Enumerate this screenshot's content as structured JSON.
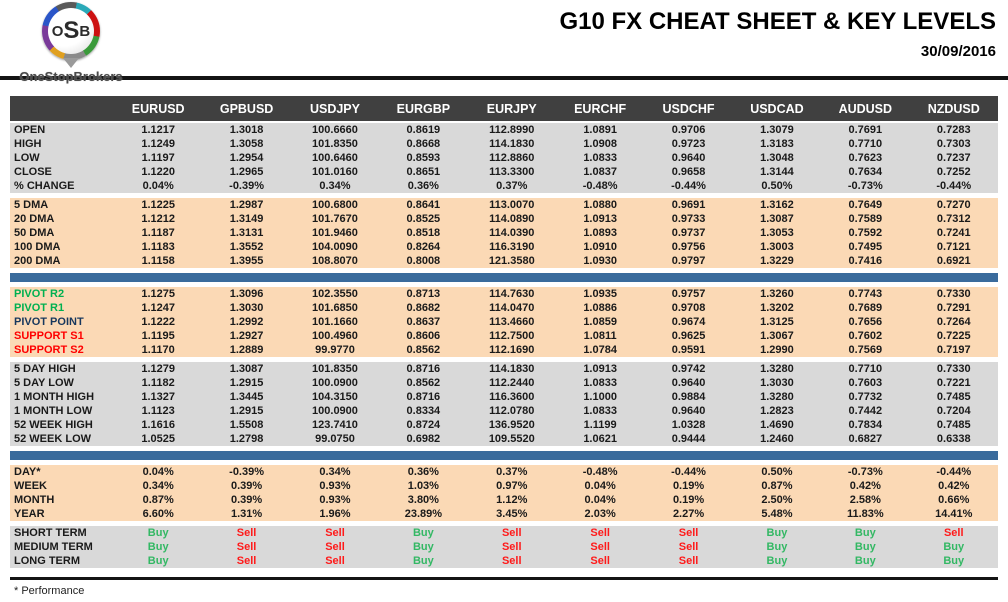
{
  "header": {
    "logo_text_o": "O",
    "logo_text_s": "S",
    "logo_text_b": "B",
    "logo_name": "OneStopBrokers",
    "title": "G10 FX CHEAT SHEET & KEY LEVELS",
    "date": "30/09/2016"
  },
  "colors": {
    "header_bar": "#404040",
    "row_gray": "#D9D9D9",
    "row_peach": "#FBD9B5",
    "divider_blue": "#3A6B9C",
    "pivot_resistance_green": "#00B050",
    "support_red": "#FF0000",
    "pivot_point_navy": "#17375D",
    "buy_green": "#33B864",
    "sell_red": "#FF1A1A"
  },
  "table": {
    "columns": [
      "EURUSD",
      "GPBUSD",
      "USDJPY",
      "EURGBP",
      "EURJPY",
      "EURCHF",
      "USDCHF",
      "USDCAD",
      "AUDUSD",
      "NZDUSD"
    ],
    "sections": [
      {
        "id": "ohlc",
        "bg": "gray",
        "divider_before": false,
        "rows": [
          {
            "label": "OPEN",
            "values": [
              "1.1217",
              "1.3018",
              "100.6660",
              "0.8619",
              "112.8990",
              "1.0891",
              "0.9706",
              "1.3079",
              "0.7691",
              "0.7283"
            ]
          },
          {
            "label": "HIGH",
            "values": [
              "1.1249",
              "1.3058",
              "101.8350",
              "0.8668",
              "114.1830",
              "1.0908",
              "0.9723",
              "1.3183",
              "0.7710",
              "0.7303"
            ]
          },
          {
            "label": "LOW",
            "values": [
              "1.1197",
              "1.2954",
              "100.6460",
              "0.8593",
              "112.8860",
              "1.0833",
              "0.9640",
              "1.3048",
              "0.7623",
              "0.7237"
            ]
          },
          {
            "label": "CLOSE",
            "values": [
              "1.1220",
              "1.2965",
              "101.0160",
              "0.8651",
              "113.3300",
              "1.0837",
              "0.9658",
              "1.3144",
              "0.7634",
              "0.7252"
            ]
          },
          {
            "label": "% CHANGE",
            "values": [
              "0.04%",
              "-0.39%",
              "0.34%",
              "0.36%",
              "0.37%",
              "-0.48%",
              "-0.44%",
              "0.50%",
              "-0.73%",
              "-0.44%"
            ]
          }
        ]
      },
      {
        "id": "dma",
        "bg": "peach",
        "divider_before": false,
        "rows": [
          {
            "label": "5 DMA",
            "values": [
              "1.1225",
              "1.2987",
              "100.6800",
              "0.8641",
              "113.0070",
              "1.0880",
              "0.9691",
              "1.3162",
              "0.7649",
              "0.7270"
            ]
          },
          {
            "label": "20 DMA",
            "values": [
              "1.1212",
              "1.3149",
              "101.7670",
              "0.8525",
              "114.0890",
              "1.0913",
              "0.9733",
              "1.3087",
              "0.7589",
              "0.7312"
            ]
          },
          {
            "label": "50 DMA",
            "values": [
              "1.1187",
              "1.3131",
              "101.9460",
              "0.8518",
              "114.0390",
              "1.0893",
              "0.9737",
              "1.3053",
              "0.7592",
              "0.7241"
            ]
          },
          {
            "label": "100 DMA",
            "values": [
              "1.1183",
              "1.3552",
              "104.0090",
              "0.8264",
              "116.3190",
              "1.0910",
              "0.9756",
              "1.3003",
              "0.7495",
              "0.7121"
            ]
          },
          {
            "label": "200 DMA",
            "values": [
              "1.1158",
              "1.3955",
              "108.8070",
              "0.8008",
              "121.3580",
              "1.0930",
              "0.9797",
              "1.3229",
              "0.7416",
              "0.6921"
            ]
          }
        ]
      },
      {
        "id": "pivots",
        "bg": "peach",
        "divider_before": true,
        "rows": [
          {
            "label": "PIVOT R2",
            "label_class": "lbl-green",
            "values": [
              "1.1275",
              "1.3096",
              "102.3550",
              "0.8713",
              "114.7630",
              "1.0935",
              "0.9757",
              "1.3260",
              "0.7743",
              "0.7330"
            ]
          },
          {
            "label": "PIVOT R1",
            "label_class": "lbl-green",
            "values": [
              "1.1247",
              "1.3030",
              "101.6850",
              "0.8682",
              "114.0470",
              "1.0886",
              "0.9708",
              "1.3202",
              "0.7689",
              "0.7291"
            ]
          },
          {
            "label": "PIVOT POINT",
            "label_class": "lbl-navy",
            "values": [
              "1.1222",
              "1.2992",
              "101.1660",
              "0.8637",
              "113.4660",
              "1.0859",
              "0.9674",
              "1.3125",
              "0.7656",
              "0.7264"
            ]
          },
          {
            "label": "SUPPORT S1",
            "label_class": "lbl-red",
            "values": [
              "1.1195",
              "1.2927",
              "100.4960",
              "0.8606",
              "112.7500",
              "1.0811",
              "0.9625",
              "1.3067",
              "0.7602",
              "0.7225"
            ]
          },
          {
            "label": "SUPPORT S2",
            "label_class": "lbl-red",
            "values": [
              "1.1170",
              "1.2889",
              "99.9770",
              "0.8562",
              "112.1690",
              "1.0784",
              "0.9591",
              "1.2990",
              "0.7569",
              "0.7197"
            ]
          }
        ]
      },
      {
        "id": "ranges",
        "bg": "gray",
        "divider_before": false,
        "rows": [
          {
            "label": "5 DAY HIGH",
            "values": [
              "1.1279",
              "1.3087",
              "101.8350",
              "0.8716",
              "114.1830",
              "1.0913",
              "0.9742",
              "1.3280",
              "0.7710",
              "0.7330"
            ]
          },
          {
            "label": "5 DAY LOW",
            "values": [
              "1.1182",
              "1.2915",
              "100.0900",
              "0.8562",
              "112.2440",
              "1.0833",
              "0.9640",
              "1.3030",
              "0.7603",
              "0.7221"
            ]
          },
          {
            "label": "1 MONTH HIGH",
            "values": [
              "1.1327",
              "1.3445",
              "104.3150",
              "0.8716",
              "116.3600",
              "1.1000",
              "0.9884",
              "1.3280",
              "0.7732",
              "0.7485"
            ]
          },
          {
            "label": "1 MONTH LOW",
            "values": [
              "1.1123",
              "1.2915",
              "100.0900",
              "0.8334",
              "112.0780",
              "1.0833",
              "0.9640",
              "1.2823",
              "0.7442",
              "0.7204"
            ]
          },
          {
            "label": "52 WEEK HIGH",
            "values": [
              "1.1616",
              "1.5508",
              "123.7410",
              "0.8724",
              "136.9520",
              "1.1199",
              "1.0328",
              "1.4690",
              "0.7834",
              "0.7485"
            ]
          },
          {
            "label": "52 WEEK LOW",
            "values": [
              "1.0525",
              "1.2798",
              "99.0750",
              "0.6982",
              "109.5520",
              "1.0621",
              "0.9444",
              "1.2460",
              "0.6827",
              "0.6338"
            ]
          }
        ]
      },
      {
        "id": "performance",
        "bg": "peach",
        "divider_before": true,
        "rows": [
          {
            "label": "DAY*",
            "values": [
              "0.04%",
              "-0.39%",
              "0.34%",
              "0.36%",
              "0.37%",
              "-0.48%",
              "-0.44%",
              "0.50%",
              "-0.73%",
              "-0.44%"
            ]
          },
          {
            "label": "WEEK",
            "values": [
              "0.34%",
              "0.39%",
              "0.93%",
              "1.03%",
              "0.97%",
              "0.04%",
              "0.19%",
              "0.87%",
              "0.42%",
              "0.42%"
            ]
          },
          {
            "label": "MONTH",
            "values": [
              "0.87%",
              "0.39%",
              "0.93%",
              "3.80%",
              "1.12%",
              "0.04%",
              "0.19%",
              "2.50%",
              "2.58%",
              "0.66%"
            ]
          },
          {
            "label": "YEAR",
            "values": [
              "6.60%",
              "1.31%",
              "1.96%",
              "23.89%",
              "3.45%",
              "2.03%",
              "2.27%",
              "5.48%",
              "11.83%",
              "14.41%"
            ]
          }
        ]
      },
      {
        "id": "signals",
        "bg": "gray",
        "divider_before": false,
        "rows": [
          {
            "label": "SHORT TERM",
            "values": [
              "Buy",
              "Sell",
              "Sell",
              "Buy",
              "Sell",
              "Sell",
              "Sell",
              "Buy",
              "Buy",
              "Sell"
            ]
          },
          {
            "label": "MEDIUM TERM",
            "values": [
              "Buy",
              "Sell",
              "Sell",
              "Buy",
              "Sell",
              "Sell",
              "Sell",
              "Buy",
              "Buy",
              "Buy"
            ]
          },
          {
            "label": "LONG TERM",
            "values": [
              "Buy",
              "Sell",
              "Sell",
              "Buy",
              "Sell",
              "Sell",
              "Sell",
              "Buy",
              "Buy",
              "Buy"
            ]
          }
        ]
      }
    ]
  },
  "footer": {
    "note": "* Performance"
  }
}
